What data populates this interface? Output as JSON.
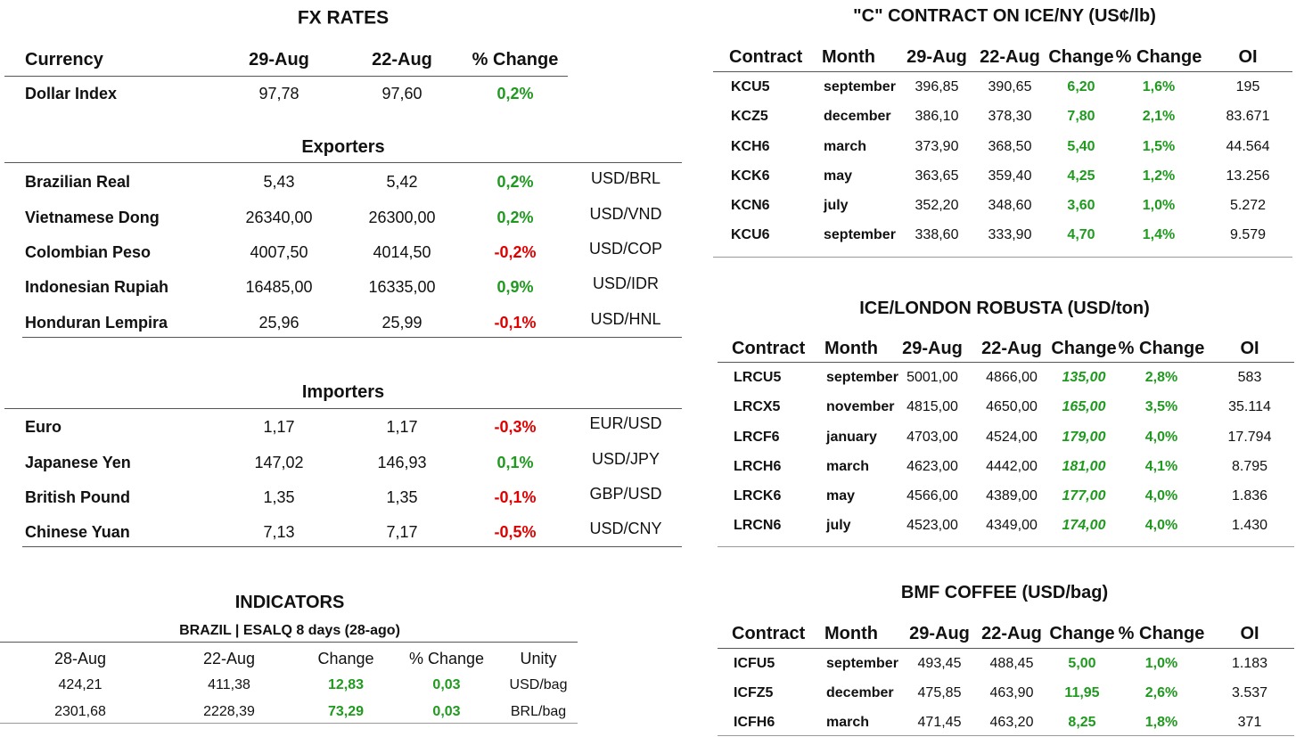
{
  "fx": {
    "title": "FX RATES",
    "header": [
      "Currency",
      "29-Aug",
      "22-Aug",
      "% Change"
    ],
    "rows": [
      [
        "Dollar Index",
        "97,78",
        "97,60",
        "0,2%"
      ]
    ],
    "exporters": {
      "title": "Exporters",
      "rows": [
        [
          "Brazilian Real",
          "5,43",
          "5,42",
          "0,2%",
          "USD/BRL"
        ],
        [
          "Vietnamese Dong",
          "26340,00",
          "26300,00",
          "0,2%",
          "USD/VND"
        ],
        [
          "Colombian Peso",
          "4007,50",
          "4014,50",
          "-0,2%",
          "USD/COP"
        ],
        [
          "Indonesian Rupiah",
          "16485,00",
          "16335,00",
          "0,9%",
          "USD/IDR"
        ],
        [
          "Honduran Lempira",
          "25,96",
          "25,99",
          "-0,1%",
          "USD/HNL"
        ]
      ]
    },
    "importers": {
      "title": "Importers",
      "rows": [
        [
          "Euro",
          "1,17",
          "1,17",
          "-0,3%",
          "EUR/USD"
        ],
        [
          "Japanese Yen",
          "147,02",
          "146,93",
          "0,1%",
          "USD/JPY"
        ],
        [
          "British Pound",
          "1,35",
          "1,35",
          "-0,1%",
          "GBP/USD"
        ],
        [
          "Chinese Yuan",
          "7,13",
          "7,17",
          "-0,5%",
          "USD/CNY"
        ]
      ]
    }
  },
  "indicators": {
    "title": "INDICATORS",
    "subtitle": "BRAZIL | ESALQ 8 days (28-ago)",
    "header": [
      "28-Aug",
      "22-Aug",
      "Change",
      "% Change",
      "Unity"
    ],
    "rows": [
      [
        "424,21",
        "411,38",
        "12,83",
        "0,03",
        "USD/bag"
      ],
      [
        "2301,68",
        "2228,39",
        "73,29",
        "0,03",
        "BRL/bag"
      ]
    ]
  },
  "ice_ny": {
    "title": "\"C\" CONTRACT ON ICE/NY (US¢/lb)",
    "header": [
      "Contract",
      "Month",
      "29-Aug",
      "22-Aug",
      "Change",
      "% Change",
      "OI"
    ],
    "rows": [
      [
        "KCU5",
        "september",
        "396,85",
        "390,65",
        "6,20",
        "1,6%",
        "195"
      ],
      [
        "KCZ5",
        "december",
        "386,10",
        "378,30",
        "7,80",
        "2,1%",
        "83.671"
      ],
      [
        "KCH6",
        "march",
        "373,90",
        "368,50",
        "5,40",
        "1,5%",
        "44.564"
      ],
      [
        "KCK6",
        "may",
        "363,65",
        "359,40",
        "4,25",
        "1,2%",
        "13.256"
      ],
      [
        "KCN6",
        "july",
        "352,20",
        "348,60",
        "3,60",
        "1,0%",
        "5.272"
      ],
      [
        "KCU6",
        "september",
        "338,60",
        "333,90",
        "4,70",
        "1,4%",
        "9.579"
      ]
    ]
  },
  "london": {
    "title": "ICE/LONDON ROBUSTA (USD/ton)",
    "header": [
      "Contract",
      "Month",
      "29-Aug",
      "22-Aug",
      "Change",
      "% Change",
      "OI"
    ],
    "rows": [
      [
        "LRCU5",
        "september",
        "5001,00",
        "4866,00",
        "135,00",
        "2,8%",
        "583"
      ],
      [
        "LRCX5",
        "november",
        "4815,00",
        "4650,00",
        "165,00",
        "3,5%",
        "35.114"
      ],
      [
        "LRCF6",
        "january",
        "4703,00",
        "4524,00",
        "179,00",
        "4,0%",
        "17.794"
      ],
      [
        "LRCH6",
        "march",
        "4623,00",
        "4442,00",
        "181,00",
        "4,1%",
        "8.795"
      ],
      [
        "LRCK6",
        "may",
        "4566,00",
        "4389,00",
        "177,00",
        "4,0%",
        "1.836"
      ],
      [
        "LRCN6",
        "july",
        "4523,00",
        "4349,00",
        "174,00",
        "4,0%",
        "1.430"
      ]
    ]
  },
  "bmf": {
    "title": "BMF COFFEE (USD/bag)",
    "header": [
      "Contract",
      "Month",
      "29-Aug",
      "22-Aug",
      "Change",
      "% Change",
      "OI"
    ],
    "rows": [
      [
        "ICFU5",
        "september",
        "493,45",
        "488,45",
        "5,00",
        "1,0%",
        "1.183"
      ],
      [
        "ICFZ5",
        "december",
        "475,85",
        "463,90",
        "11,95",
        "2,6%",
        "3.537"
      ],
      [
        "ICFH6",
        "march",
        "471,45",
        "463,20",
        "8,25",
        "1,8%",
        "371"
      ]
    ]
  }
}
